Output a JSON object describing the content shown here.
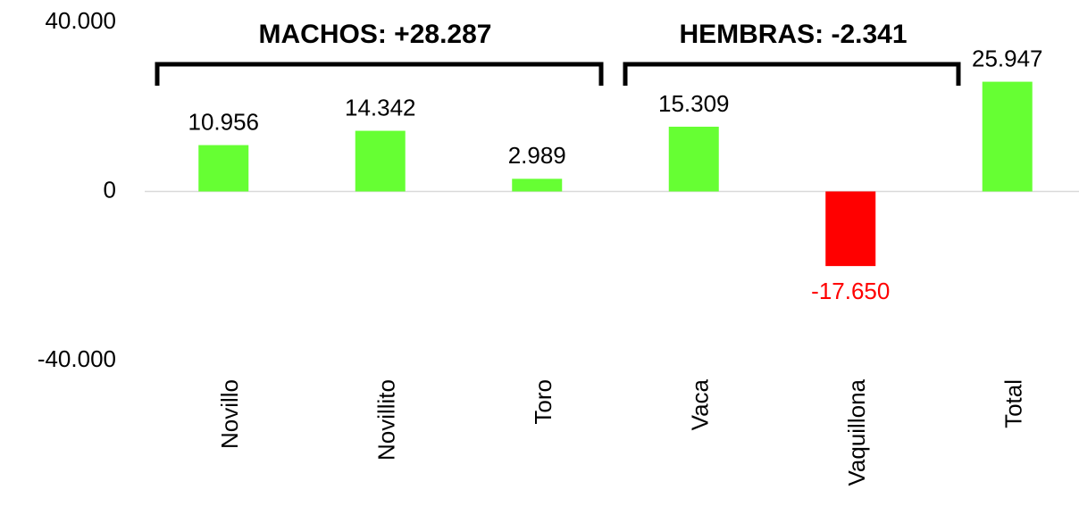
{
  "chart_data": {
    "type": "bar",
    "annotations": [
      "MACHOS: +28.287",
      "HEMBRAS: -2.341"
    ],
    "categories": [
      "Novillo",
      "Novillito",
      "Toro",
      "Vaca",
      "Vaquillona",
      "Total"
    ],
    "values": [
      10956,
      14342,
      2989,
      15309,
      -17650,
      25947
    ],
    "value_labels": [
      "10.956",
      "14.342",
      "2.989",
      "15.309",
      "-17.650",
      "25.947"
    ],
    "colors": [
      "#66ff33",
      "#66ff33",
      "#66ff33",
      "#66ff33",
      "#ff0000",
      "#66ff33"
    ],
    "ylim": [
      -40000,
      40000
    ],
    "yticks": [
      {
        "value": -40000,
        "label": "-40.000"
      },
      0,
      {
        "value": 40000,
        "label": "40.000"
      }
    ]
  }
}
